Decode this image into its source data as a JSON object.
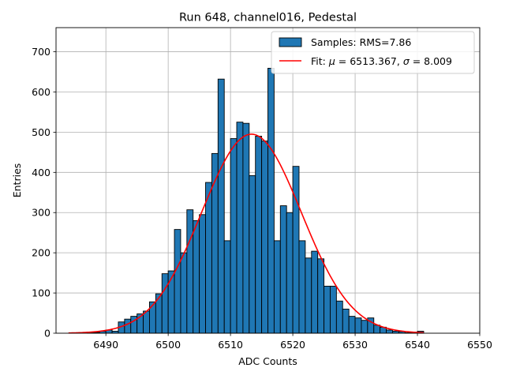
{
  "chart_data": {
    "type": "bar",
    "title": "Run 648, channel016, Pedestal",
    "xlabel": "ADC Counts",
    "ylabel": "Entries",
    "xlim": [
      6482,
      6550
    ],
    "ylim": [
      0,
      760
    ],
    "xticks": [
      6490,
      6500,
      6510,
      6520,
      6530,
      6540,
      6550
    ],
    "yticks": [
      0,
      100,
      200,
      300,
      400,
      500,
      600,
      700
    ],
    "grid": true,
    "legend_position": "top-right",
    "legend": {
      "histogram": "Samples: RMS=7.86",
      "fit_prefix": "Fit: ",
      "fit_mu_symbol": "μ",
      "fit_mu_value": " = 6513.367, ",
      "fit_sigma_symbol": "σ",
      "fit_sigma_value": " = 8.009"
    },
    "histogram": {
      "bin_start": 6487,
      "bin_width": 1,
      "counts": [
        1,
        2,
        5,
        8,
        5,
        28,
        35,
        42,
        48,
        55,
        78,
        98,
        148,
        155,
        258,
        200,
        307,
        280,
        295,
        375,
        447,
        632,
        230,
        484,
        525,
        522,
        392,
        490,
        478,
        659,
        230,
        317,
        300,
        415,
        230,
        187,
        204,
        185,
        117,
        117,
        80,
        60,
        42,
        38,
        32,
        38,
        20,
        15,
        8,
        5,
        4,
        1,
        2,
        5
      ],
      "bar_color": "#1f77b4",
      "edge_color": "#000000"
    },
    "fit": {
      "type": "gaussian",
      "mu": 6513.367,
      "sigma": 8.009,
      "amplitude": 495,
      "x_range": [
        6484,
        6541
      ],
      "color": "#ff0000"
    }
  }
}
